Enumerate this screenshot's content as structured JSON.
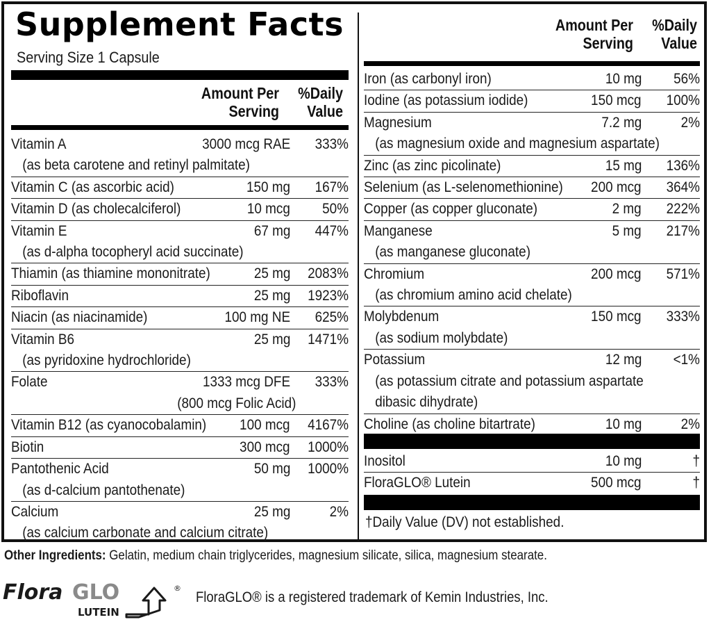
{
  "label": {
    "title": "Supplement Facts",
    "serving_size": "Serving Size 1 Capsule",
    "header": {
      "amount_line1": "Amount Per",
      "amount_line2": "Serving",
      "dv_line1": "%Daily",
      "dv_line2": "Value"
    },
    "left_rows": [
      {
        "name": "Vitamin A",
        "amount": "3000 mcg RAE",
        "dv": "333%",
        "sub": "(as beta carotene and retinyl palmitate)"
      },
      {
        "name": "Vitamin C (as ascorbic acid)",
        "amount": "150 mg",
        "dv": "167%"
      },
      {
        "name": "Vitamin D (as cholecalciferol)",
        "amount": "10 mcg",
        "dv": "50%"
      },
      {
        "name": "Vitamin E",
        "amount": "67 mg",
        "dv": "447%",
        "sub": "(as d-alpha tocopheryl acid succinate)"
      },
      {
        "name": "Thiamin (as thiamine mononitrate)",
        "amount": "25 mg",
        "dv": "2083%"
      },
      {
        "name": "Riboflavin",
        "amount": "25 mg",
        "dv": "1923%"
      },
      {
        "name": "Niacin (as niacinamide)",
        "amount": "100 mg NE",
        "dv": "625%"
      },
      {
        "name": "Vitamin B6",
        "amount": "25 mg",
        "dv": "1471%",
        "sub": "(as pyridoxine hydrochloride)"
      },
      {
        "name": "Folate",
        "amount": "1333 mcg DFE",
        "dv": "333%",
        "sub_right": "(800 mcg Folic Acid)"
      },
      {
        "name": "Vitamin B12 (as cyanocobalamin)",
        "amount": "100 mcg",
        "dv": "4167%"
      },
      {
        "name": "Biotin",
        "amount": "300 mcg",
        "dv": "1000%"
      },
      {
        "name": "Pantothenic Acid",
        "amount": "50 mg",
        "dv": "1000%",
        "sub": "(as d-calcium pantothenate)"
      },
      {
        "name": "Calcium",
        "amount": "25 mg",
        "dv": "2%",
        "sub": "(as calcium carbonate and calcium citrate)"
      }
    ],
    "right_rows": [
      {
        "name": "Iron (as carbonyl iron)",
        "amount": "10 mg",
        "dv": "56%"
      },
      {
        "name": "Iodine (as potassium iodide)",
        "amount": "150 mcg",
        "dv": "100%"
      },
      {
        "name": "Magnesium",
        "amount": "7.2 mg",
        "dv": "2%",
        "sub": "(as magnesium oxide and magnesium aspartate)"
      },
      {
        "name": "Zinc (as zinc picolinate)",
        "amount": "15 mg",
        "dv": "136%"
      },
      {
        "name": "Selenium (as L-selenomethionine)",
        "amount": "200 mcg",
        "dv": "364%"
      },
      {
        "name": "Copper (as copper gluconate)",
        "amount": "2 mg",
        "dv": "222%"
      },
      {
        "name": "Manganese",
        "amount": "5 mg",
        "dv": "217%",
        "sub": "(as manganese gluconate)"
      },
      {
        "name": "Chromium",
        "amount": "200 mcg",
        "dv": "571%",
        "sub": "(as chromium amino acid chelate)"
      },
      {
        "name": "Molybdenum",
        "amount": "150 mcg",
        "dv": "333%",
        "sub": "(as sodium molybdate)"
      },
      {
        "name": "Potassium",
        "amount": "12 mg",
        "dv": "<1%",
        "sub": "(as potassium citrate and potassium aspartate",
        "sub2": "dibasic dihydrate)"
      },
      {
        "name": "Choline (as choline bitartrate)",
        "amount": "10 mg",
        "dv": "2%"
      }
    ],
    "other_rows": [
      {
        "name": "Inositol",
        "amount": "10 mg",
        "dv": "†"
      },
      {
        "name": "FloraGLO® Lutein",
        "amount": "500 mcg",
        "dv": "†"
      }
    ],
    "footnote": "†Daily Value (DV) not established."
  },
  "other_ingredients": {
    "label": "Other Ingredients:",
    "text": " Gelatin, medium chain triglycerides, magnesium silicate, silica, magnesium stearate."
  },
  "logo": {
    "flora": "Flora",
    "glo": "GLO",
    "lutein": "LUTEIN",
    "registered": "®"
  },
  "trademark": "FloraGLO® is a registered trademark of Kemin Industries, Inc."
}
